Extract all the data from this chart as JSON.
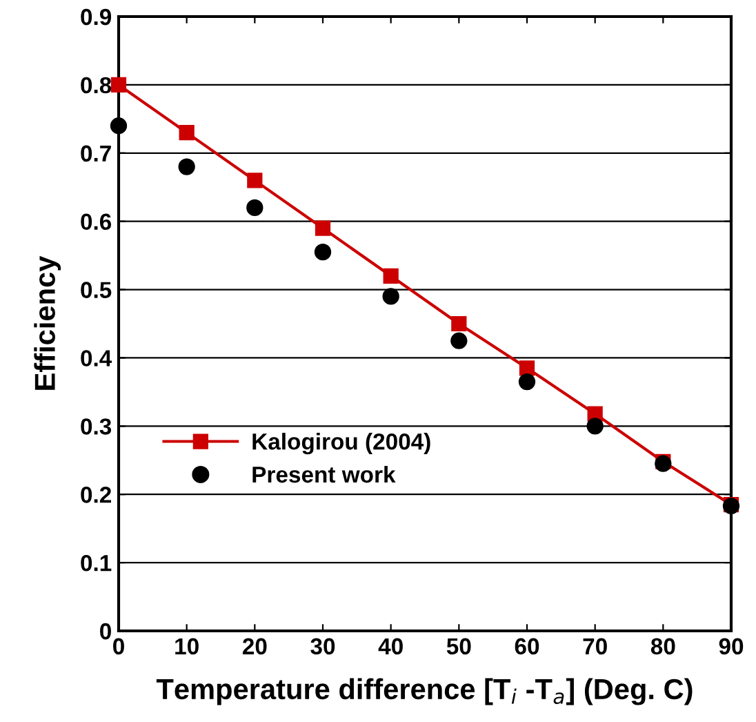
{
  "chart_data": {
    "type": "line",
    "xlabel": "Temperature difference [T$_{i}$ -T$_{a}$] (Deg. C)",
    "ylabel": "Efficiency",
    "x": [
      0,
      10,
      20,
      30,
      40,
      50,
      60,
      70,
      80,
      90
    ],
    "series": [
      {
        "name": "Kalogirou (2004)",
        "color": "#cc0000",
        "marker": "square",
        "line_style": "solid",
        "values": [
          0.8,
          0.73,
          0.66,
          0.59,
          0.52,
          0.45,
          0.385,
          0.318,
          0.248,
          0.185
        ]
      },
      {
        "name": "Present work",
        "color": "#000000",
        "type": "scatter",
        "marker": "circle",
        "values": [
          0.74,
          0.68,
          0.62,
          0.555,
          0.49,
          0.425,
          0.365,
          0.3,
          0.245,
          0.183
        ]
      }
    ],
    "xlim": [
      0,
      90
    ],
    "xticks": [
      0,
      10,
      20,
      30,
      40,
      50,
      60,
      70,
      80,
      90
    ],
    "ylim": [
      0,
      0.9
    ],
    "yticks": [
      0,
      0.1,
      0.2,
      0.3,
      0.4,
      0.5,
      0.6,
      0.7,
      0.8,
      0.9
    ],
    "grid": "y",
    "legend": "bottom left"
  }
}
